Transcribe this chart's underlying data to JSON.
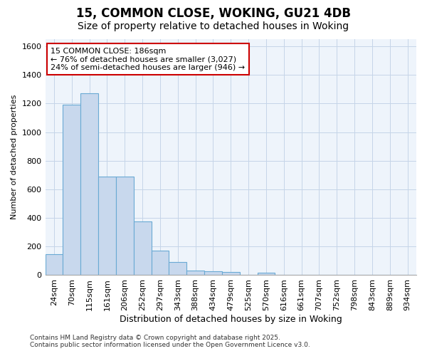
{
  "title": "15, COMMON CLOSE, WOKING, GU21 4DB",
  "subtitle": "Size of property relative to detached houses in Woking",
  "xlabel": "Distribution of detached houses by size in Woking",
  "ylabel": "Number of detached properties",
  "categories": [
    "24sqm",
    "70sqm",
    "115sqm",
    "161sqm",
    "206sqm",
    "252sqm",
    "297sqm",
    "343sqm",
    "388sqm",
    "434sqm",
    "479sqm",
    "525sqm",
    "570sqm",
    "616sqm",
    "661sqm",
    "707sqm",
    "752sqm",
    "798sqm",
    "843sqm",
    "889sqm",
    "934sqm"
  ],
  "values": [
    148,
    1190,
    1270,
    690,
    690,
    375,
    170,
    90,
    33,
    25,
    20,
    0,
    18,
    0,
    0,
    0,
    0,
    0,
    0,
    0,
    0
  ],
  "bar_color": "#c8d8ed",
  "bar_edge_color": "#6aaad4",
  "bar_edge_width": 0.8,
  "ylim": [
    0,
    1650
  ],
  "yticks": [
    0,
    200,
    400,
    600,
    800,
    1000,
    1200,
    1400,
    1600
  ],
  "grid_color": "#c5d5e8",
  "background_color": "#eef4fb",
  "fig_background_color": "#ffffff",
  "annotation_text": "15 COMMON CLOSE: 186sqm\n← 76% of detached houses are smaller (3,027)\n24% of semi-detached houses are larger (946) →",
  "annotation_box_color": "#ffffff",
  "annotation_border_color": "#cc0000",
  "footer_line1": "Contains HM Land Registry data © Crown copyright and database right 2025.",
  "footer_line2": "Contains public sector information licensed under the Open Government Licence v3.0.",
  "title_fontsize": 12,
  "subtitle_fontsize": 10,
  "xlabel_fontsize": 9,
  "ylabel_fontsize": 8,
  "tick_fontsize": 8,
  "annotation_fontsize": 8,
  "footer_fontsize": 6.5
}
